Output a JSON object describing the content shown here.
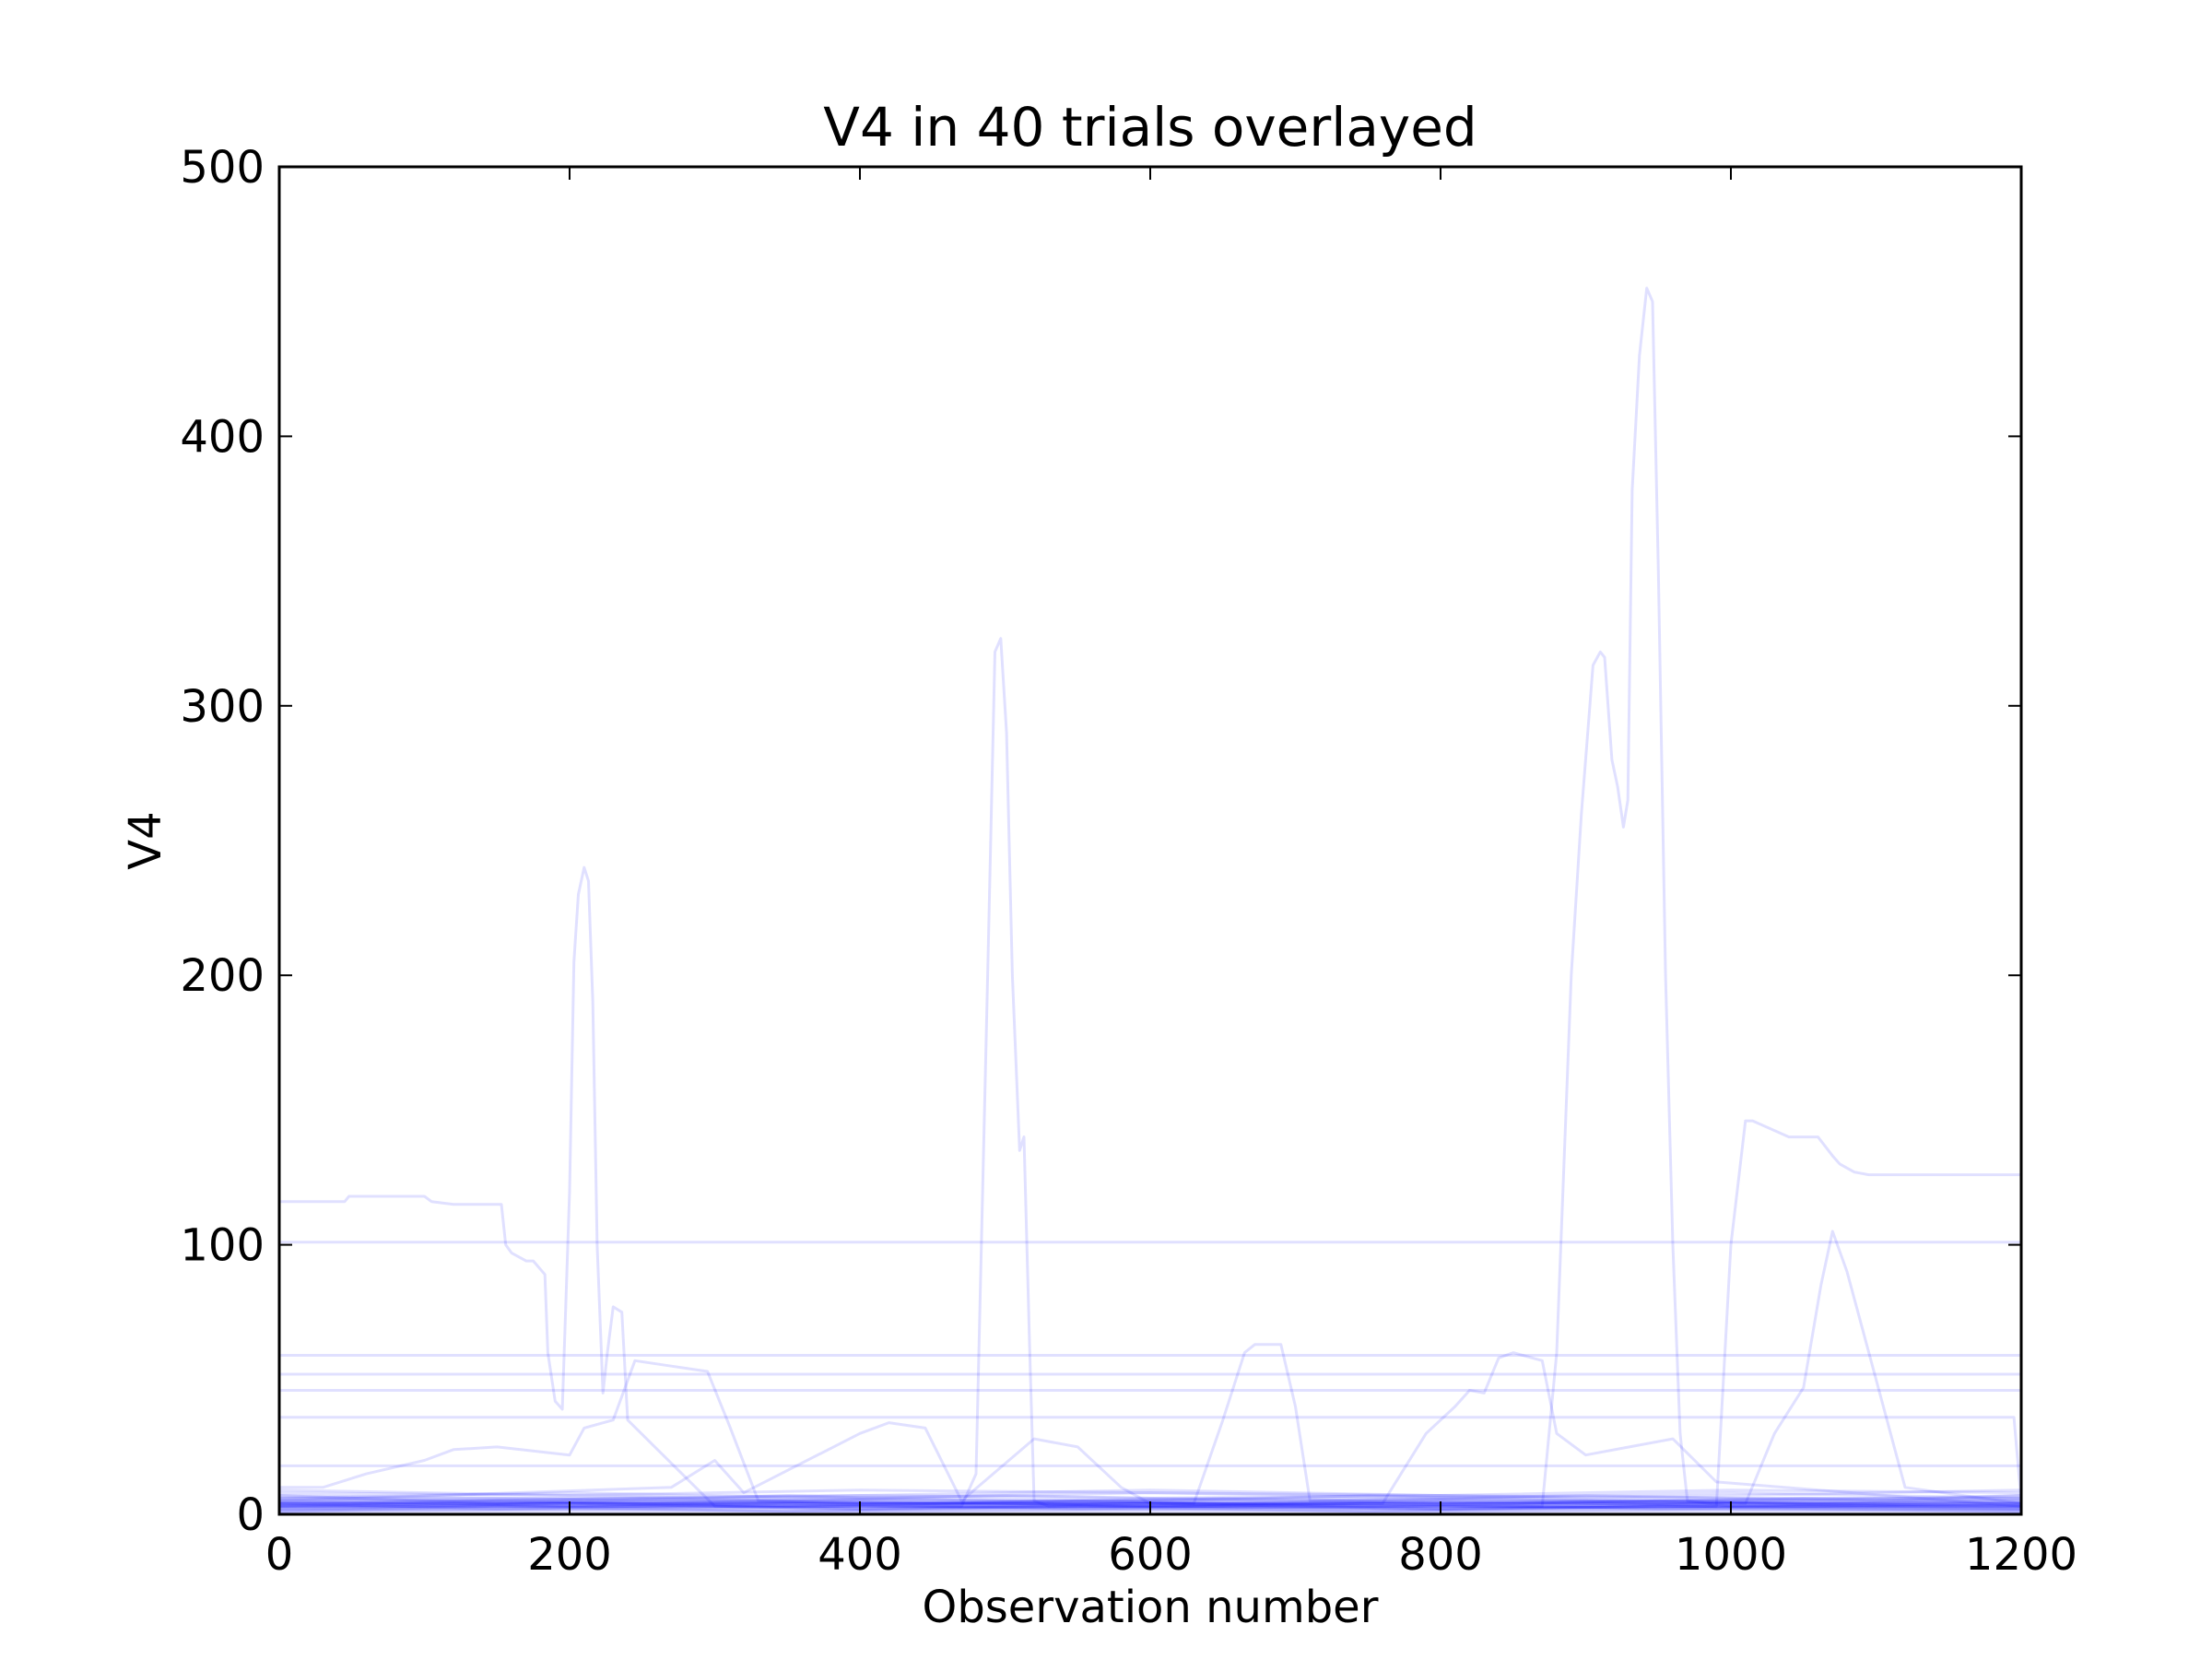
{
  "chart_data": {
    "type": "line",
    "title": "V4 in 40 trials overlayed",
    "xlabel": "Observation number",
    "ylabel": "V4",
    "xlim": [
      0,
      1200
    ],
    "ylim": [
      0,
      500
    ],
    "xticks": [
      0,
      200,
      400,
      600,
      800,
      1000,
      1200
    ],
    "yticks": [
      0,
      100,
      200,
      300,
      400,
      500
    ],
    "grid": false,
    "legend": "none",
    "series_count": 40,
    "line_color": "#0000ff",
    "series": [
      {
        "x": [
          0,
          45,
          48,
          100,
          105,
          120,
          153,
          156,
          160,
          170,
          175,
          183,
          185,
          190,
          195,
          200,
          203,
          206,
          210,
          213,
          216,
          219,
          223,
          226,
          230,
          236,
          240,
          300,
          400,
          600,
          800,
          1000,
          1200
        ],
        "y": [
          116,
          116,
          118,
          118,
          116,
          115,
          115,
          100,
          97,
          94,
          94,
          89,
          60,
          42,
          39,
          120,
          205,
          230,
          240,
          235,
          190,
          100,
          45,
          60,
          77,
          75,
          35,
          3,
          2,
          3,
          2,
          3,
          2
        ]
      },
      {
        "x": [
          0,
          470,
          480,
          488,
          493,
          497,
          501,
          505,
          510,
          513,
          517,
          520,
          530,
          600,
          800,
          1000,
          1200
        ],
        "y": [
          3,
          3,
          15,
          200,
          320,
          325,
          290,
          200,
          135,
          140,
          60,
          5,
          3,
          3,
          2,
          3,
          3
        ]
      },
      {
        "x": [
          0,
          870,
          880,
          890,
          897,
          905,
          910,
          913,
          918,
          922,
          926,
          929,
          932,
          937,
          942,
          946,
          950,
          955,
          960,
          965,
          970,
          1000,
          1200
        ],
        "y": [
          3,
          3,
          60,
          200,
          260,
          315,
          320,
          318,
          280,
          270,
          255,
          265,
          380,
          430,
          455,
          450,
          350,
          200,
          100,
          30,
          5,
          3,
          3
        ]
      },
      {
        "x": [
          0,
          990,
          1000,
          1010,
          1015,
          1040,
          1060,
          1070,
          1075,
          1085,
          1095,
          1110,
          1200
        ],
        "y": [
          3,
          3,
          100,
          146,
          146,
          140,
          140,
          133,
          130,
          127,
          126,
          126,
          126
        ]
      },
      {
        "x": [
          0,
          1200
        ],
        "y": [
          101,
          101
        ]
      },
      {
        "x": [
          0,
          1200
        ],
        "y": [
          59,
          59
        ]
      },
      {
        "x": [
          0,
          1200
        ],
        "y": [
          52,
          52
        ]
      },
      {
        "x": [
          0,
          1200
        ],
        "y": [
          46,
          46
        ]
      },
      {
        "x": [
          0,
          1195,
          1200
        ],
        "y": [
          36,
          36,
          5
        ]
      },
      {
        "x": [
          0,
          1200
        ],
        "y": [
          18,
          18
        ]
      },
      {
        "x": [
          0,
          30,
          60,
          100,
          120,
          150,
          200,
          210,
          230,
          245,
          270,
          295,
          310,
          330,
          400,
          1200
        ],
        "y": [
          10,
          10,
          15,
          20,
          24,
          25,
          22,
          32,
          35,
          57,
          55,
          53,
          33,
          5,
          4,
          4
        ]
      },
      {
        "x": [
          0,
          270,
          300,
          320,
          400,
          420,
          445,
          470,
          520,
          550,
          580,
          600,
          800,
          1200
        ],
        "y": [
          5,
          10,
          20,
          8,
          30,
          34,
          32,
          5,
          28,
          25,
          10,
          4,
          3,
          3
        ]
      },
      {
        "x": [
          0,
          630,
          650,
          665,
          672,
          690,
          700,
          710,
          800,
          1200
        ],
        "y": [
          4,
          4,
          35,
          60,
          63,
          63,
          40,
          5,
          4,
          4
        ]
      },
      {
        "x": [
          0,
          760,
          790,
          810,
          820,
          830,
          840,
          850,
          870,
          880,
          900,
          930,
          960,
          990,
          1200
        ],
        "y": [
          4,
          4,
          30,
          40,
          46,
          45,
          58,
          60,
          57,
          30,
          22,
          25,
          28,
          12,
          3
        ]
      },
      {
        "x": [
          0,
          1010,
          1030,
          1050,
          1062,
          1070,
          1080,
          1090,
          1105,
          1120,
          1200
        ],
        "y": [
          4,
          4,
          30,
          47,
          85,
          105,
          90,
          70,
          40,
          10,
          4
        ]
      },
      {
        "x": [
          0,
          200,
          400,
          600,
          800,
          1000,
          1200
        ],
        "y": [
          6,
          6,
          7,
          6,
          7,
          6,
          6
        ]
      },
      {
        "x": [
          0,
          200,
          400,
          600,
          800,
          1000,
          1200
        ],
        "y": [
          8,
          7,
          9,
          8,
          7,
          9,
          8
        ]
      },
      {
        "x": [
          0,
          300,
          500,
          700,
          900,
          1100,
          1200
        ],
        "y": [
          5,
          6,
          5,
          6,
          5,
          6,
          5
        ]
      },
      {
        "x": [
          0,
          200,
          400,
          600,
          800,
          1000,
          1200
        ],
        "y": [
          3,
          4,
          3,
          4,
          3,
          4,
          3
        ]
      },
      {
        "x": [
          0,
          300,
          600,
          900,
          1200
        ],
        "y": [
          2,
          2,
          2,
          2,
          2
        ]
      },
      {
        "x": [
          0,
          200,
          400,
          600,
          800,
          1000,
          1200
        ],
        "y": [
          4,
          5,
          4,
          5,
          4,
          5,
          4
        ]
      },
      {
        "x": [
          0,
          300,
          500,
          700,
          900,
          1100,
          1200
        ],
        "y": [
          7,
          5,
          7,
          5,
          7,
          5,
          7
        ]
      },
      {
        "x": [
          0,
          200,
          400,
          600,
          800,
          1000,
          1200
        ],
        "y": [
          1,
          2,
          1,
          2,
          1,
          2,
          1
        ]
      },
      {
        "x": [
          0,
          150,
          350,
          550,
          750,
          950,
          1200
        ],
        "y": [
          3,
          5,
          3,
          5,
          3,
          5,
          3
        ]
      },
      {
        "x": [
          0,
          250,
          450,
          650,
          850,
          1050,
          1200
        ],
        "y": [
          6,
          4,
          6,
          4,
          6,
          4,
          6
        ]
      },
      {
        "x": [
          0,
          200,
          400,
          600,
          800,
          1000,
          1200
        ],
        "y": [
          2,
          3,
          2,
          3,
          2,
          3,
          2
        ]
      },
      {
        "x": [
          0,
          300,
          600,
          900,
          1200
        ],
        "y": [
          9,
          6,
          9,
          6,
          9
        ]
      },
      {
        "x": [
          0,
          200,
          400,
          600,
          800,
          1000,
          1200
        ],
        "y": [
          5,
          3,
          5,
          3,
          5,
          3,
          5
        ]
      },
      {
        "x": [
          0,
          150,
          350,
          550,
          750,
          950,
          1200
        ],
        "y": [
          1,
          3,
          1,
          3,
          1,
          3,
          1
        ]
      },
      {
        "x": [
          0,
          250,
          450,
          650,
          850,
          1050,
          1200
        ],
        "y": [
          4,
          6,
          4,
          6,
          4,
          6,
          4
        ]
      },
      {
        "x": [
          0,
          200,
          400,
          600,
          800,
          1000,
          1200
        ],
        "y": [
          2,
          4,
          2,
          4,
          2,
          4,
          2
        ]
      },
      {
        "x": [
          0,
          300,
          600,
          900,
          1200
        ],
        "y": [
          3,
          3,
          3,
          3,
          3
        ]
      },
      {
        "x": [
          0,
          200,
          400,
          600,
          800,
          1000,
          1200
        ],
        "y": [
          6,
          8,
          6,
          8,
          6,
          8,
          6
        ]
      },
      {
        "x": [
          0,
          150,
          350,
          550,
          750,
          950,
          1200
        ],
        "y": [
          4,
          2,
          4,
          2,
          4,
          2,
          4
        ]
      },
      {
        "x": [
          0,
          250,
          450,
          650,
          850,
          1050,
          1200
        ],
        "y": [
          1,
          1,
          1,
          1,
          1,
          1,
          1
        ]
      },
      {
        "x": [
          0,
          200,
          400,
          600,
          800,
          1000,
          1200
        ],
        "y": [
          5,
          5,
          5,
          5,
          5,
          5,
          5
        ]
      },
      {
        "x": [
          0,
          300,
          600,
          900,
          1200
        ],
        "y": [
          3,
          5,
          3,
          5,
          3
        ]
      },
      {
        "x": [
          0,
          200,
          400,
          600,
          800,
          1000,
          1200
        ],
        "y": [
          2,
          2,
          3,
          2,
          3,
          2,
          2
        ]
      },
      {
        "x": [
          0,
          150,
          350,
          550,
          750,
          950,
          1200
        ],
        "y": [
          7,
          4,
          7,
          4,
          7,
          4,
          7
        ]
      },
      {
        "x": [
          0,
          250,
          450,
          650,
          850,
          1050,
          1200
        ],
        "y": [
          4,
          4,
          4,
          4,
          4,
          4,
          4
        ]
      }
    ]
  }
}
